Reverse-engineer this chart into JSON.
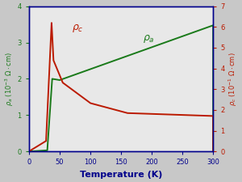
{
  "xlabel": "Temperature (K)",
  "ylabel_left": "$\\rho_a$ (10$^{-3}$ $\\Omega\\cdot$cm)",
  "ylabel_right": "$\\rho_c$ (10$^{-1}$ $\\Omega\\cdot$cm)",
  "xlim": [
    0,
    300
  ],
  "ylim_left": [
    0,
    4
  ],
  "ylim_right": [
    0,
    7
  ],
  "xticks": [
    0,
    50,
    100,
    150,
    200,
    250,
    300
  ],
  "yticks_left": [
    0,
    1,
    2,
    3,
    4
  ],
  "yticks_right": [
    0,
    1,
    2,
    3,
    4,
    5,
    6,
    7
  ],
  "color_green": "#1a7a1a",
  "color_red": "#bb1a00",
  "color_axes": "#00008b",
  "label_rho_a": "$\\rho_a$",
  "label_rho_c": "$\\rho_c$",
  "fig_bg": "#c8c8c8",
  "plot_bg": "#e8e8e8"
}
